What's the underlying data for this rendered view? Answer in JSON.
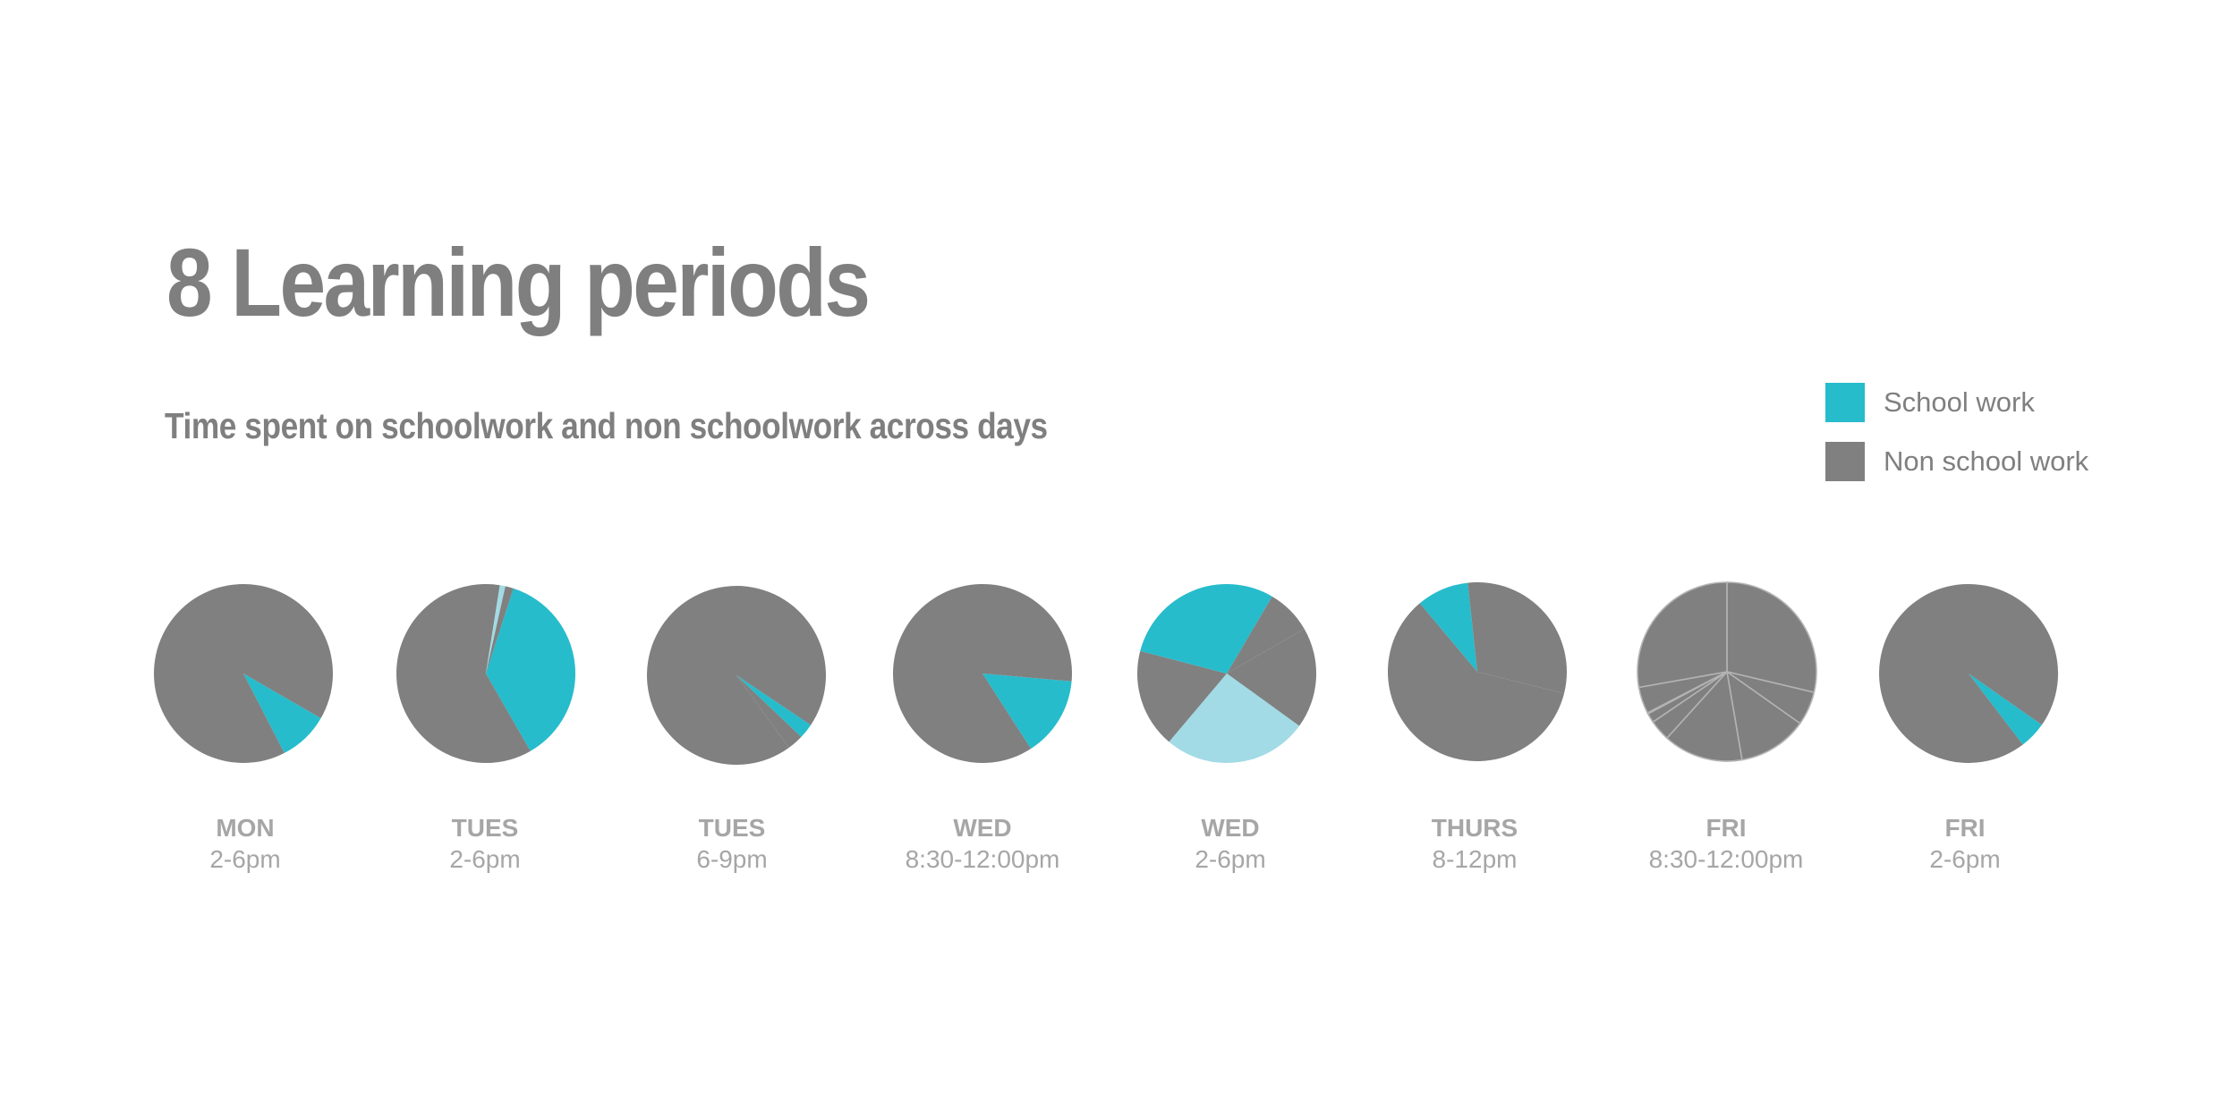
{
  "title": "8 Learning periods",
  "subtitle": "Time spent on schoolwork and non schoolwork across days",
  "legend": [
    {
      "label": "School work",
      "color": "#26bccc"
    },
    {
      "label": "Non school  work",
      "color": "#808080"
    }
  ],
  "colors": {
    "school": "#26bccc",
    "non_school": "#808080",
    "light": "#a2dbe5",
    "divider": "#b3b3b3"
  },
  "chart_data": {
    "type": "pie",
    "title": "8 Learning periods",
    "subtitle": "Time spent on schoolwork and non schoolwork across days",
    "pies": [
      {
        "day": "MON",
        "time": "2-6pm",
        "slices": [
          {
            "category": "School work",
            "value": 0.091,
            "color": "#26bccc"
          },
          {
            "category": "Non school  work",
            "value": 0.909,
            "color": "#808080"
          }
        ]
      },
      {
        "day": "TUES",
        "time": "2-6pm",
        "slices": [
          {
            "category": "Non school  work",
            "value": 0.525,
            "color": "#808080"
          },
          {
            "category": "",
            "value": 0.01,
            "color": "#a2dbe5"
          },
          {
            "category": "Non school  work",
            "value": 0.015,
            "color": "#808080"
          },
          {
            "category": "School work",
            "value": 0.367,
            "color": "#26bccc"
          },
          {
            "category": "Non school  work",
            "value": 0.083,
            "color": "#808080"
          }
        ]
      },
      {
        "day": "TUES",
        "time": "6-9pm",
        "slices": [
          {
            "category": "Non school  work",
            "value": 0.944,
            "color": "#808080"
          },
          {
            "category": "School work",
            "value": 0.027,
            "color": "#26bccc"
          },
          {
            "category": "Non school  work",
            "value": 0.029,
            "color": "#808080"
          }
        ]
      },
      {
        "day": "WED",
        "time": "8:30-12:00pm",
        "slices": [
          {
            "category": "School work",
            "value": 0.145,
            "color": "#26bccc"
          },
          {
            "category": "Non school  work",
            "value": 0.855,
            "color": "#808080"
          }
        ]
      },
      {
        "day": "WED",
        "time": "2-6pm",
        "slices": [
          {
            "category": "Non school  work",
            "value": 0.183,
            "color": "#808080"
          },
          {
            "category": "",
            "value": 0.262,
            "color": "#a2dbe5"
          },
          {
            "category": "Non school  work",
            "value": 0.179,
            "color": "#808080"
          },
          {
            "category": "School work",
            "value": 0.294,
            "color": "#26bccc"
          },
          {
            "category": "Non school  work",
            "value": 0.082,
            "color": "#808080"
          }
        ]
      },
      {
        "day": "THURS",
        "time": "8-12pm",
        "slices": [
          {
            "category": "Non school  work",
            "value": 0.6,
            "color": "#808080"
          },
          {
            "category": "School work",
            "value": 0.094,
            "color": "#26bccc"
          },
          {
            "category": "Non school  work",
            "value": 0.306,
            "color": "#808080"
          }
        ]
      },
      {
        "day": "FRI",
        "time": "8:30-12:00pm",
        "slices": [
          {
            "category": "Non school  work",
            "value": 0.287,
            "color": "#808080"
          },
          {
            "category": "Non school  work",
            "value": 0.061,
            "color": "#808080"
          },
          {
            "category": "Non school  work",
            "value": 0.125,
            "color": "#808080"
          },
          {
            "category": "Non school  work",
            "value": 0.144,
            "color": "#808080"
          },
          {
            "category": "Non school  work",
            "value": 0.038,
            "color": "#808080"
          },
          {
            "category": "Non school  work",
            "value": 0.017,
            "color": "#808080"
          },
          {
            "category": "Non school  work",
            "value": 0.002,
            "color": "#808080"
          },
          {
            "category": "Non school  work",
            "value": 0.048,
            "color": "#808080"
          },
          {
            "category": "Non school  work",
            "value": 0.278,
            "color": "#808080"
          }
        ]
      },
      {
        "day": "FRI",
        "time": "2-6pm",
        "slices": [
          {
            "category": "School work",
            "value": 0.049,
            "color": "#26bccc"
          },
          {
            "category": "Non school  work",
            "value": 0.951,
            "color": "#808080"
          }
        ]
      }
    ]
  }
}
